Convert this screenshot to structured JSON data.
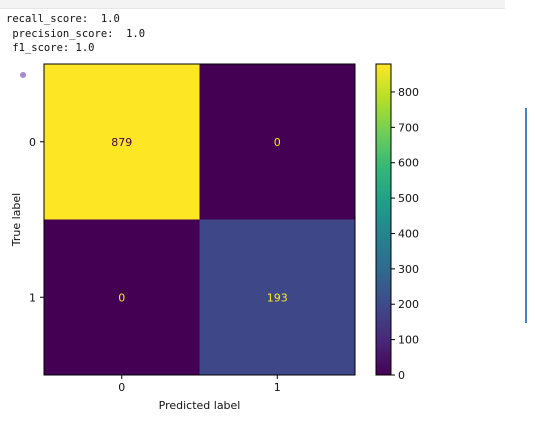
{
  "output": {
    "lines": [
      "recall_score:  1.0",
      " precision_score:  1.0",
      " f1_score: 1.0"
    ]
  },
  "chart_data": {
    "type": "heatmap",
    "title": "",
    "xlabel": "Predicted label",
    "ylabel": "True label",
    "x_categories": [
      "0",
      "1"
    ],
    "y_categories": [
      "0",
      "1"
    ],
    "values": [
      [
        879,
        0
      ],
      [
        0,
        193
      ]
    ],
    "colormap": "viridis",
    "colorbar": {
      "min": 0,
      "max": 879,
      "ticks": [
        0,
        100,
        200,
        300,
        400,
        500,
        600,
        700,
        800
      ]
    }
  }
}
